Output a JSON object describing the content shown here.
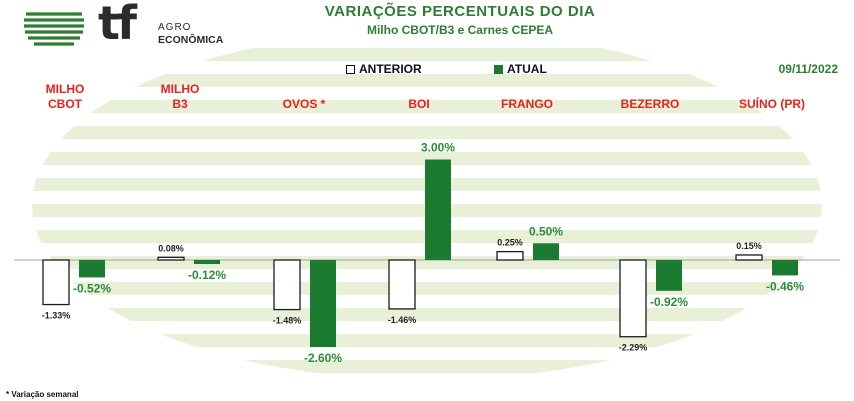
{
  "brand": {
    "name": "tf",
    "line1": "AGRO",
    "line2": "ECONÔMICA"
  },
  "header": {
    "title": "VARIAÇÕES PERCENTUAIS DO DIA",
    "subtitle": "Milho CBOT/B3 e Carnes CEPEA",
    "date": "09/11/2022"
  },
  "legend": {
    "anterior": "ANTERIOR",
    "atual": "ATUAL"
  },
  "footnote": "* Variação semanal",
  "colors": {
    "atual": "#1a7a30",
    "anterior": "#ffffff",
    "category_label": "#e8221b",
    "title": "#2e7d32",
    "background_band": "#e9f0d8"
  },
  "chart_data": {
    "type": "bar",
    "categories": [
      {
        "line1": "MILHO",
        "line2": "CBOT"
      },
      {
        "line1": "MILHO",
        "line2": "B3"
      },
      {
        "line1": "OVOS *",
        "line2": ""
      },
      {
        "line1": "BOI",
        "line2": ""
      },
      {
        "line1": "FRANGO",
        "line2": ""
      },
      {
        "line1": "BEZERRO",
        "line2": ""
      },
      {
        "line1": "SUÍNO (PR)",
        "line2": ""
      }
    ],
    "series": [
      {
        "name": "ANTERIOR",
        "values": [
          -1.33,
          0.08,
          -1.48,
          -1.46,
          0.25,
          -2.29,
          0.15
        ],
        "labels": [
          "-1.33%",
          "0.08%",
          "-1.48%",
          "-1.46%",
          "0.25%",
          "-2.29%",
          "0.15%"
        ]
      },
      {
        "name": "ATUAL",
        "values": [
          -0.52,
          -0.12,
          -2.6,
          3.0,
          0.5,
          -0.92,
          -0.46
        ],
        "labels": [
          "-0.52%",
          "-0.12%",
          "-2.60%",
          "3.00%",
          "0.50%",
          "-0.92%",
          "-0.46%"
        ]
      }
    ],
    "ylim": [
      -3,
      3.2
    ],
    "grid": false,
    "legend_position": "top-center"
  }
}
